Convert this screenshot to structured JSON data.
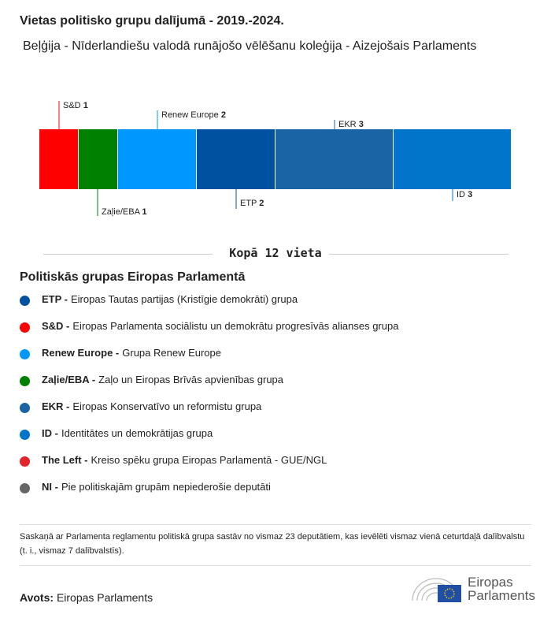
{
  "title": "Vietas politisko grupu dalījumā - 2019.-2024.",
  "subtitle": "Beļģija - Nīderlandiešu valodā runājošo vēlēšanu koleģija - Aizejošais Parlaments",
  "chart_data": {
    "type": "bar",
    "orientation": "stacked-horizontal",
    "categories": [
      "S&D",
      "Zaļie/EBA",
      "Renew Europe",
      "ETP",
      "EKR",
      "ID"
    ],
    "values": [
      1,
      1,
      2,
      2,
      3,
      3
    ],
    "colors": [
      "#ff0000",
      "#008000",
      "#0098ff",
      "#0051a0",
      "#1a63a5",
      "#0075c9"
    ],
    "label_position": [
      "top",
      "bottom",
      "top",
      "bottom",
      "top",
      "bottom"
    ]
  },
  "total_label": "Kopā 12 vieta",
  "legend_heading": "Politiskās grupas Eiropas Parlamentā",
  "legend": [
    {
      "abbr": "ETP -",
      "name": "Eiropas Tautas partijas (Kristīgie demokrāti) grupa",
      "color": "#0051a0"
    },
    {
      "abbr": "S&D -",
      "name": "Eiropas Parlamenta sociālistu un demokrātu progresīvās alianses grupa",
      "color": "#ff0000"
    },
    {
      "abbr": "Renew Europe -",
      "name": "Grupa Renew Europe",
      "color": "#0098ff"
    },
    {
      "abbr": "Zaļie/EBA -",
      "name": "Zaļo un Eiropas Brīvās apvienības grupa",
      "color": "#008000"
    },
    {
      "abbr": "EKR -",
      "name": "Eiropas Konservatīvo un reformistu grupa",
      "color": "#1a63a5"
    },
    {
      "abbr": "ID -",
      "name": "Identitātes un demokrātijas grupa",
      "color": "#0075c9"
    },
    {
      "abbr": "The Left -",
      "name": "Kreiso spēku grupa Eiropas Parlamentā - GUE/NGL",
      "color": "#e3242b"
    },
    {
      "abbr": "NI -",
      "name": "Pie politiskajām grupām nepiederošie deputāti",
      "color": "#666666"
    }
  ],
  "note": "Saskaņā ar Parlamenta reglamentu politiskā grupa sastāv no vismaz 23 deputātiem, kas ievēlēti vismaz vienā ceturtdaļā dalībvalstu (t. i., vismaz 7 dalībvalstīs).",
  "source_label": "Avots:",
  "source": "Eiropas Parlaments",
  "logo": {
    "line1": "Eiropas",
    "line2": "Parlaments"
  }
}
